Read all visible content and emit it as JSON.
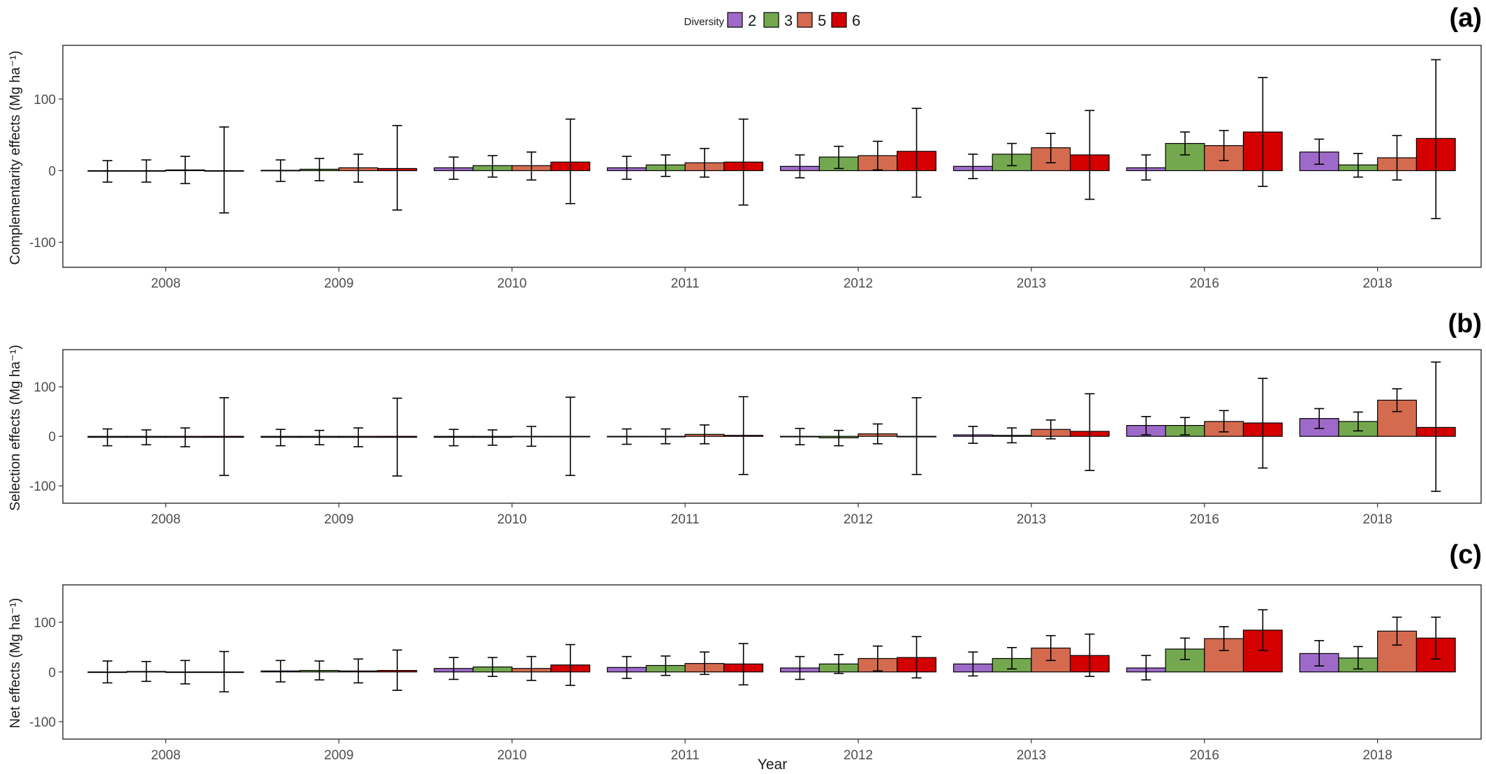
{
  "chart_data": [
    {
      "type": "bar",
      "panel_label": "(a)",
      "ylabel": "Complementarity effects  (Mg ha⁻¹)",
      "xlabel": "",
      "ylim": [
        -135,
        175
      ],
      "yticks": [
        -100,
        0,
        100
      ],
      "categories": [
        "2008",
        "2009",
        "2010",
        "2011",
        "2012",
        "2013",
        "2016",
        "2018"
      ],
      "series": [
        {
          "name": "2",
          "color": "#9e6ac9",
          "values": [
            -0.5,
            0.5,
            4,
            4,
            6,
            6,
            4,
            26
          ],
          "error_low": [
            -16,
            -15,
            -12,
            -12,
            -10,
            -11,
            -13,
            9
          ],
          "error_high": [
            14,
            15,
            19,
            20,
            22,
            23,
            22,
            44
          ]
        },
        {
          "name": "3",
          "color": "#74a84e",
          "values": [
            0,
            2,
            7,
            8,
            19,
            23,
            38,
            8
          ],
          "error_low": [
            -16,
            -14,
            -9,
            -8,
            3,
            7,
            22,
            -9
          ],
          "error_high": [
            15,
            17,
            21,
            22,
            34,
            38,
            54,
            24
          ]
        },
        {
          "name": "5",
          "color": "#d46b4f",
          "values": [
            1,
            4,
            7,
            11,
            21,
            32,
            35,
            18
          ],
          "error_low": [
            -18,
            -16,
            -13,
            -9,
            1,
            11,
            14,
            -13
          ],
          "error_high": [
            20,
            23,
            26,
            31,
            41,
            52,
            56,
            49
          ]
        },
        {
          "name": "6",
          "color": "#d40000",
          "values": [
            0,
            3,
            12,
            12,
            27,
            22,
            54,
            45
          ],
          "error_low": [
            -59,
            -55,
            -46,
            -48,
            -37,
            -40,
            -22,
            -67
          ],
          "error_high": [
            61,
            63,
            72,
            72,
            87,
            84,
            130,
            155
          ]
        }
      ]
    },
    {
      "type": "bar",
      "panel_label": "(b)",
      "ylabel": "Selection effects (Mg ha⁻¹)",
      "xlabel": "",
      "ylim": [
        -135,
        175
      ],
      "yticks": [
        -100,
        0,
        100
      ],
      "categories": [
        "2008",
        "2009",
        "2010",
        "2011",
        "2012",
        "2013",
        "2016",
        "2018"
      ],
      "series": [
        {
          "name": "2",
          "color": "#9e6ac9",
          "values": [
            -2,
            -2,
            -2,
            0,
            -1,
            3,
            22,
            36
          ],
          "error_low": [
            -19,
            -19,
            -19,
            -16,
            -17,
            -14,
            3,
            16
          ],
          "error_high": [
            15,
            14,
            14,
            15,
            16,
            20,
            40,
            56
          ]
        },
        {
          "name": "3",
          "color": "#74a84e",
          "values": [
            -2,
            -2,
            -2,
            0,
            -3,
            2,
            22,
            30
          ],
          "error_low": [
            -17,
            -17,
            -18,
            -15,
            -19,
            -13,
            3,
            11
          ],
          "error_high": [
            13,
            12,
            13,
            15,
            12,
            17,
            38,
            49
          ]
        },
        {
          "name": "5",
          "color": "#d46b4f",
          "values": [
            -2,
            -2,
            0,
            4,
            5,
            14,
            30,
            73
          ],
          "error_low": [
            -21,
            -21,
            -20,
            -15,
            -15,
            -5,
            9,
            50
          ],
          "error_high": [
            17,
            17,
            20,
            23,
            25,
            33,
            52,
            96
          ]
        },
        {
          "name": "6",
          "color": "#d40000",
          "values": [
            -2,
            -2,
            0,
            2,
            0,
            10,
            27,
            18
          ],
          "error_low": [
            -79,
            -80,
            -79,
            -77,
            -77,
            -69,
            -64,
            -111
          ],
          "error_high": [
            78,
            77,
            79,
            80,
            78,
            86,
            117,
            150
          ]
        }
      ]
    },
    {
      "type": "bar",
      "panel_label": "(c)",
      "ylabel": "Net effects (Mg ha⁻¹)",
      "xlabel": "Year",
      "ylim": [
        -135,
        175
      ],
      "yticks": [
        -100,
        0,
        100
      ],
      "categories": [
        "2008",
        "2009",
        "2010",
        "2011",
        "2012",
        "2013",
        "2016",
        "2018"
      ],
      "series": [
        {
          "name": "2",
          "color": "#9e6ac9",
          "values": [
            0,
            2,
            7,
            9,
            8,
            16,
            8,
            37
          ],
          "error_low": [
            -22,
            -20,
            -15,
            -13,
            -15,
            -8,
            -16,
            12
          ],
          "error_high": [
            22,
            23,
            29,
            31,
            31,
            40,
            33,
            63
          ]
        },
        {
          "name": "3",
          "color": "#74a84e",
          "values": [
            1,
            3,
            10,
            13,
            16,
            27,
            46,
            28
          ],
          "error_low": [
            -19,
            -16,
            -9,
            -7,
            -3,
            6,
            25,
            6
          ],
          "error_high": [
            21,
            22,
            29,
            32,
            35,
            49,
            68,
            51
          ]
        },
        {
          "name": "5",
          "color": "#d46b4f",
          "values": [
            -1,
            2,
            7,
            17,
            27,
            48,
            67,
            82
          ],
          "error_low": [
            -24,
            -22,
            -17,
            -5,
            2,
            23,
            43,
            54
          ],
          "error_high": [
            23,
            26,
            31,
            40,
            52,
            73,
            91,
            110
          ]
        },
        {
          "name": "6",
          "color": "#d40000",
          "values": [
            0,
            3,
            14,
            16,
            29,
            33,
            84,
            68
          ],
          "error_low": [
            -40,
            -37,
            -27,
            -26,
            -12,
            -9,
            43,
            26
          ],
          "error_high": [
            41,
            44,
            55,
            57,
            71,
            76,
            125,
            110
          ]
        }
      ]
    }
  ],
  "legend": {
    "title": "Diversity",
    "placement": "top-center",
    "items": [
      {
        "label": "2",
        "color": "#9e6ac9"
      },
      {
        "label": "3",
        "color": "#74a84e"
      },
      {
        "label": "5",
        "color": "#d46b4f"
      },
      {
        "label": "6",
        "color": "#d40000"
      }
    ]
  }
}
